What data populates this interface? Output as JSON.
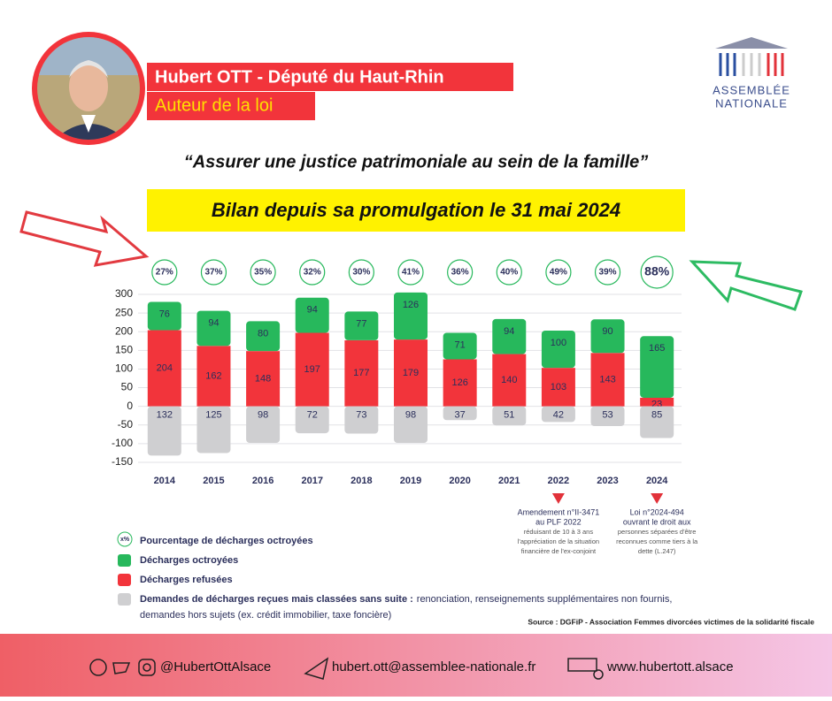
{
  "header": {
    "name": "Hubert OTT - Député du Haut-Rhin",
    "role": "Auteur de la loi",
    "logo": [
      "ASSEMBLÉE",
      "NATIONALE"
    ],
    "quote": "“Assurer une justice patrimoniale au sein de la famille”",
    "banner": "Bilan depuis sa promulgation le 31 mai 2024"
  },
  "chart_data": {
    "type": "bar",
    "stacked": true,
    "categories": [
      "2014",
      "2015",
      "2016",
      "2017",
      "2018",
      "2019",
      "2020",
      "2021",
      "2022",
      "2023",
      "2024"
    ],
    "series": [
      {
        "name": "Décharges refusées",
        "color": "#f2343b",
        "values": [
          204,
          162,
          148,
          197,
          177,
          179,
          126,
          140,
          103,
          143,
          23
        ]
      },
      {
        "name": "Décharges octroyées",
        "color": "#27b85c",
        "values": [
          76,
          94,
          80,
          94,
          77,
          126,
          71,
          94,
          100,
          90,
          165
        ]
      },
      {
        "name": "Demandes de décharges reçues mais classées sans suite :",
        "color": "#cfcfd1",
        "values": [
          -132,
          -125,
          -98,
          -72,
          -73,
          -98,
          -37,
          -51,
          -42,
          -53,
          -85
        ],
        "value_labels": [
          "132",
          "125",
          "98",
          "72",
          "73",
          "98",
          "37",
          "51",
          "42",
          "53",
          "85"
        ]
      }
    ],
    "share": {
      "name": "Pourcentage de décharges octroyées",
      "marker_label": "x%",
      "values": [
        27,
        37,
        35,
        32,
        30,
        41,
        36,
        40,
        49,
        39,
        88
      ],
      "value_labels": [
        "27%",
        "37%",
        "35%",
        "32%",
        "30%",
        "41%",
        "36%",
        "40%",
        "49%",
        "39%",
        "88%"
      ]
    },
    "ylim": [
      -150,
      300
    ],
    "yticks": [
      -150,
      -100,
      -50,
      0,
      50,
      100,
      150,
      200,
      250,
      300
    ],
    "grid": true,
    "legend_note": [
      "renonciation, renseignements supplémentaires non fournis,",
      "demandes hors sujets (ex. crédit immobilier, taxe foncière)"
    ],
    "annotations": [
      {
        "category": "2022",
        "lines": [
          "Amendement n°II-3471",
          "au PLF 2022",
          "réduisant de 10 à 3 ans",
          "l'appréciation de la situation",
          "financière de l'ex-conjoint"
        ]
      },
      {
        "category": "2024",
        "lines": [
          "Loi n°2024-494",
          "ouvrant le droit aux",
          "personnes séparées d'être",
          "reconnues comme tiers à la",
          "dette (L.247)"
        ]
      }
    ],
    "source": "Source : DGFiP - Association Femmes divorcées victimes de la solidarité fiscale"
  },
  "footer": {
    "social": "@HubertOttAlsace",
    "email": "hubert.ott@assemblee-nationale.fr",
    "web": "www.hubertott.alsace"
  }
}
